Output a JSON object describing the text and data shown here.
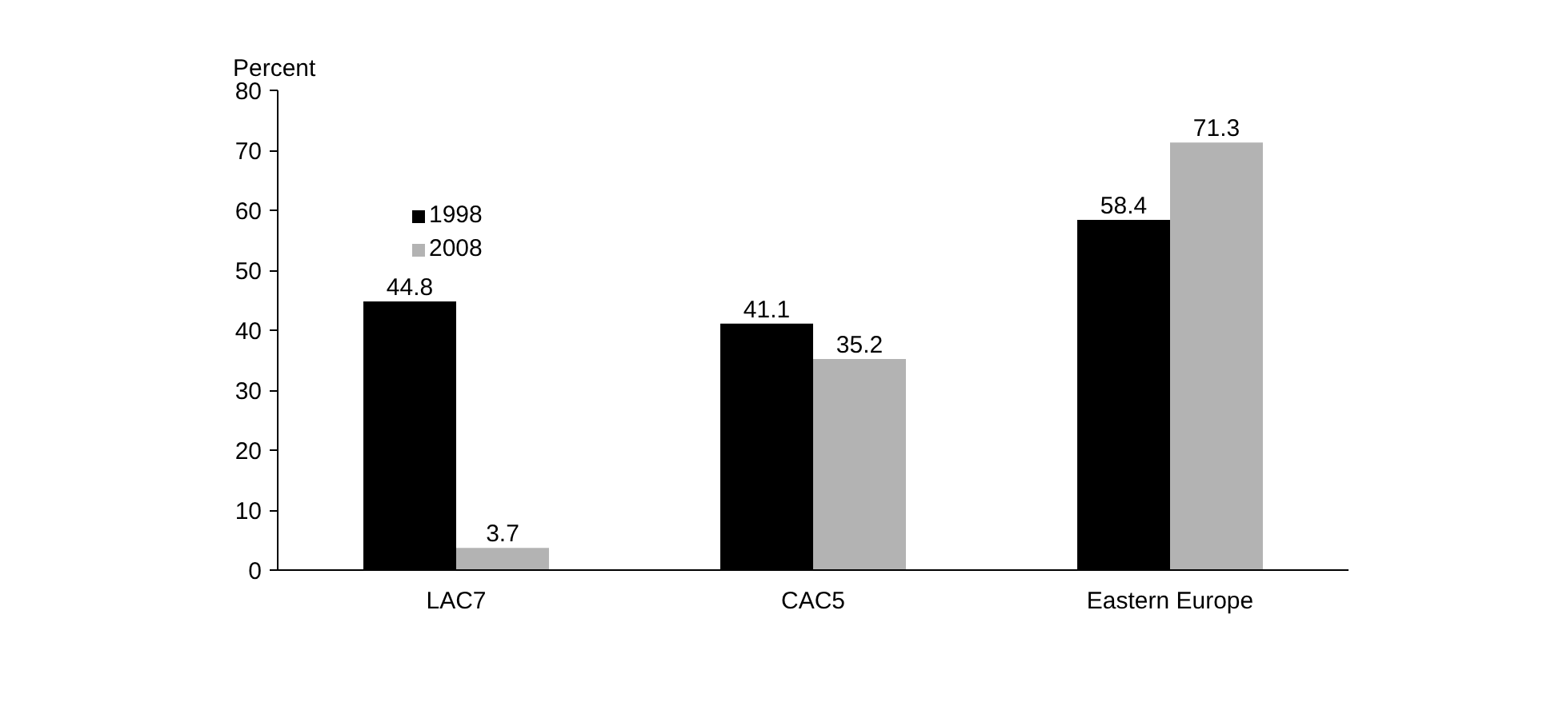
{
  "chart_data": {
    "type": "bar",
    "ylabel": "Percent",
    "categories": [
      "LAC7",
      "CAC5",
      "Eastern Europe"
    ],
    "series": [
      {
        "name": "1998",
        "color": "#000000",
        "values": [
          44.8,
          41.1,
          58.4
        ]
      },
      {
        "name": "2008",
        "color": "#b3b3b3",
        "values": [
          3.7,
          35.2,
          71.3
        ]
      }
    ],
    "ylim": [
      0,
      80
    ],
    "yticks": [
      0,
      10,
      20,
      30,
      40,
      50,
      60,
      70,
      80
    ],
    "data_labels": true,
    "legend": "top left",
    "grid": false
  }
}
